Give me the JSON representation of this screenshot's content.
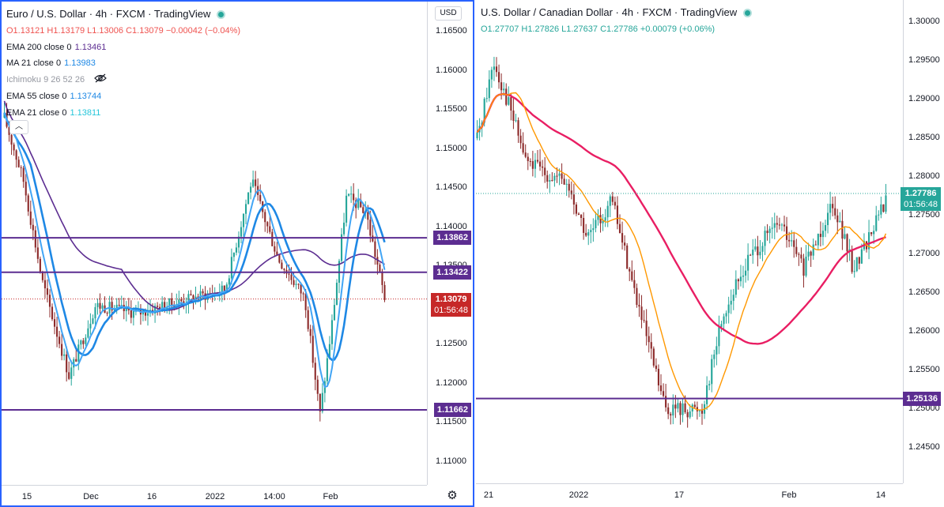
{
  "left": {
    "title": "Euro / U.S. Dollar · 4h · FXCM · TradingView",
    "ohlc": "O1.13121  H1.13179  L1.13006  C1.13079  −0.00042 (−0.04%)",
    "currency": "USD",
    "collapse_icon": "chevron-up",
    "indicators": [
      {
        "name": "EMA 200 close 0",
        "value": "1.13461",
        "color": "#5c2d91"
      },
      {
        "name": "MA 21 close 0",
        "value": "1.13983",
        "color": "#1e88e5"
      },
      {
        "name": "Ichimoku 9 26 52 26",
        "value": "",
        "color": "#9598a1"
      },
      {
        "name": "EMA 55 close 0",
        "value": "1.13744",
        "color": "#1e88e5"
      },
      {
        "name": "EMA 21 close 0",
        "value": "1.13811",
        "color": "#1e88e5"
      }
    ],
    "y_ticks": [
      "1.16500",
      "1.16000",
      "1.15500",
      "1.15000",
      "1.14500",
      "1.14000",
      "1.13500",
      "1.13000",
      "1.12500",
      "1.12000",
      "1.11500",
      "1.11000"
    ],
    "x_ticks": [
      "15",
      "Dec",
      "16",
      "2022",
      "14:00",
      "Feb"
    ],
    "levels": [
      "1.13862",
      "1.13422",
      "1.11662"
    ],
    "last_price": "1.13079",
    "countdown": "01:56:48",
    "colors": {
      "level": "#5c2d91",
      "last": "#c62828",
      "ema200": "#5c2d91",
      "ma": "#1e88e5"
    }
  },
  "right": {
    "title": "U.S. Dollar / Canadian Dollar · 4h · FXCM · TradingView",
    "ohlc": "O1.27707  H1.27826  L1.27637  C1.27786  +0.00079 (+0.06%)",
    "y_ticks": [
      "1.30000",
      "1.29500",
      "1.29000",
      "1.28500",
      "1.28000",
      "1.27500",
      "1.27000",
      "1.26500",
      "1.26000",
      "1.25500",
      "1.25000",
      "1.24500"
    ],
    "x_ticks": [
      "21",
      "2022",
      "17",
      "Feb",
      "14"
    ],
    "levels": [
      "1.25136"
    ],
    "last_price": "1.27786",
    "countdown": "01:56:48",
    "colors": {
      "level": "#5c2d91",
      "last": "#26a69a",
      "ma_slow": "#e91e63",
      "ma_fast": "#ff9800"
    }
  }
}
